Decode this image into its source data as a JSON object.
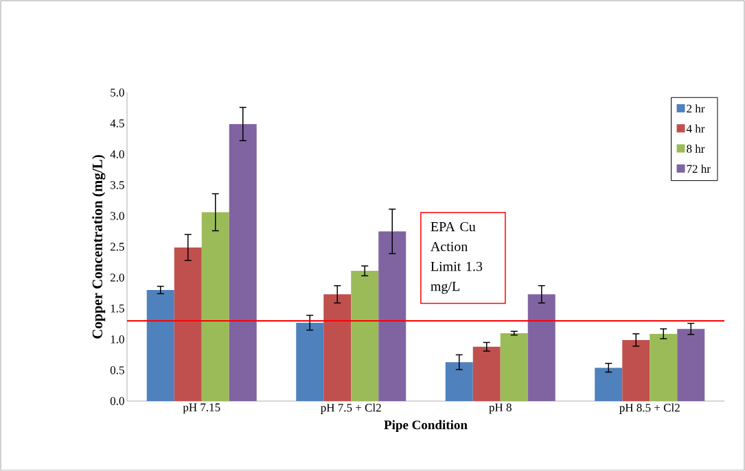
{
  "chart_data": {
    "type": "bar",
    "xlabel": "Pipe Condition",
    "ylabel": "Copper Concentration (mg/L)",
    "categories": [
      "pH 7.15",
      "pH 7.5 + Cl2",
      "pH 8",
      "pH 8.5 + Cl2"
    ],
    "series": [
      {
        "name": "2 hr",
        "color": "#4f81bd",
        "values": [
          1.8,
          1.27,
          0.63,
          0.54
        ],
        "errors": [
          0.06,
          0.12,
          0.12,
          0.07
        ]
      },
      {
        "name": "4 hr",
        "color": "#c0504d",
        "values": [
          2.49,
          1.73,
          0.88,
          0.99
        ],
        "errors": [
          0.21,
          0.14,
          0.07,
          0.1
        ]
      },
      {
        "name": "8 hr",
        "color": "#9bbb59",
        "values": [
          3.06,
          2.11,
          1.1,
          1.09
        ],
        "errors": [
          0.3,
          0.08,
          0.03,
          0.08
        ]
      },
      {
        "name": "72 hr",
        "color": "#8064a2",
        "values": [
          4.49,
          2.75,
          1.73,
          1.17
        ],
        "errors": [
          0.27,
          0.36,
          0.14,
          0.09
        ]
      }
    ],
    "ylim": [
      0,
      5
    ],
    "yticks": [
      {
        "value": 0,
        "label": "0.0"
      },
      {
        "value": 0.5,
        "label": "0.5"
      },
      {
        "value": 1,
        "label": "1.0"
      },
      {
        "value": 1.5,
        "label": "1.5"
      },
      {
        "value": 2,
        "label": "2.0"
      },
      {
        "value": 2.5,
        "label": "2.5"
      },
      {
        "value": 3,
        "label": "3.0"
      },
      {
        "value": 3.5,
        "label": "3.5"
      },
      {
        "value": 4,
        "label": "4.0"
      },
      {
        "value": 4.5,
        "label": "4.5"
      },
      {
        "value": 5,
        "label": "5.0"
      }
    ],
    "ref_lines": [
      {
        "axis": "y",
        "value": 1.3,
        "label": "EPA Cu Action Limit 1.3 mg/L",
        "color": "#ff0000"
      }
    ],
    "grid": false,
    "legend": "top right"
  }
}
